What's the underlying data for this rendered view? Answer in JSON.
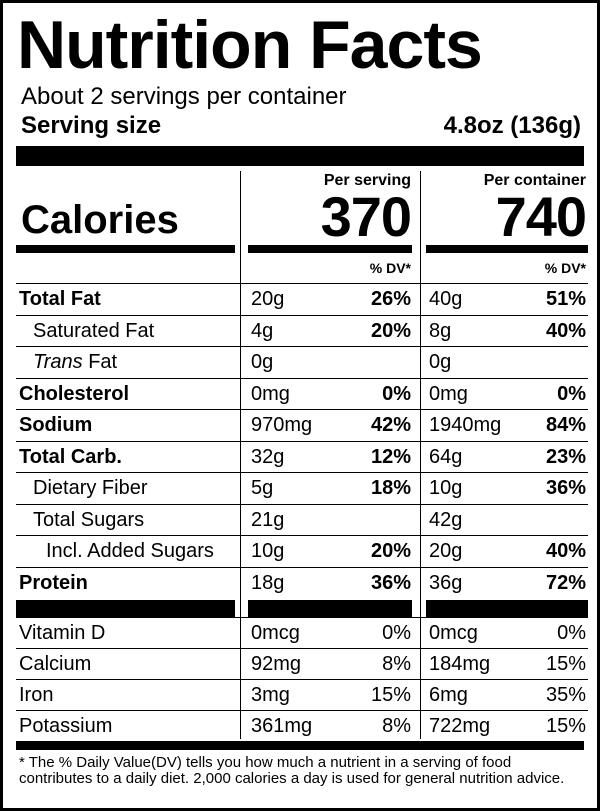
{
  "label": {
    "title": "Nutrition Facts",
    "servings_per_container": "About 2 servings per container",
    "serving_size_label": "Serving size",
    "serving_size_value": "4.8oz (136g)",
    "calories_label": "Calories",
    "per_serving_label": "Per serving",
    "per_container_label": "Per container",
    "calories_per_serving": "370",
    "calories_per_container": "740",
    "dv_label": "% DV*",
    "nutrients": [
      {
        "name": "Total Fat",
        "serving_amount": "20g",
        "serving_dv": "26%",
        "container_amount": "40g",
        "container_dv": "51%"
      },
      {
        "name": "Saturated Fat",
        "serving_amount": "4g",
        "serving_dv": "20%",
        "container_amount": "8g",
        "container_dv": "40%"
      },
      {
        "name_italic": "Trans",
        "name_rest": " Fat",
        "serving_amount": "0g",
        "serving_dv": "",
        "container_amount": "0g",
        "container_dv": ""
      },
      {
        "name": "Cholesterol",
        "serving_amount": "0mg",
        "serving_dv": "0%",
        "container_amount": "0mg",
        "container_dv": "0%"
      },
      {
        "name": "Sodium",
        "serving_amount": "970mg",
        "serving_dv": "42%",
        "container_amount": "1940mg",
        "container_dv": "84%"
      },
      {
        "name": "Total Carb.",
        "serving_amount": "32g",
        "serving_dv": "12%",
        "container_amount": "64g",
        "container_dv": "23%"
      },
      {
        "name": "Dietary Fiber",
        "serving_amount": "5g",
        "serving_dv": "18%",
        "container_amount": "10g",
        "container_dv": "36%"
      },
      {
        "name": "Total Sugars",
        "serving_amount": "21g",
        "serving_dv": "",
        "container_amount": "42g",
        "container_dv": ""
      },
      {
        "name": "Incl. Added Sugars",
        "serving_amount": "10g",
        "serving_dv": "20%",
        "container_amount": "20g",
        "container_dv": "40%"
      },
      {
        "name": "Protein",
        "serving_amount": "18g",
        "serving_dv": "36%",
        "container_amount": "36g",
        "container_dv": "72%"
      }
    ],
    "vitamins": [
      {
        "name": "Vitamin D",
        "serving_amount": "0mcg",
        "serving_dv": "0%",
        "container_amount": "0mcg",
        "container_dv": "0%"
      },
      {
        "name": "Calcium",
        "serving_amount": "92mg",
        "serving_dv": "8%",
        "container_amount": "184mg",
        "container_dv": "15%"
      },
      {
        "name": "Iron",
        "serving_amount": "3mg",
        "serving_dv": "15%",
        "container_amount": "6mg",
        "container_dv": "35%"
      },
      {
        "name": "Potassium",
        "serving_amount": "361mg",
        "serving_dv": "8%",
        "container_amount": "722mg",
        "container_dv": "15%"
      }
    ],
    "footnote": "* The % Daily Value(DV) tells you how much a nutrient in a serving of food contributes to a daily diet. 2,000 calories a day is used for general nutrition advice."
  }
}
